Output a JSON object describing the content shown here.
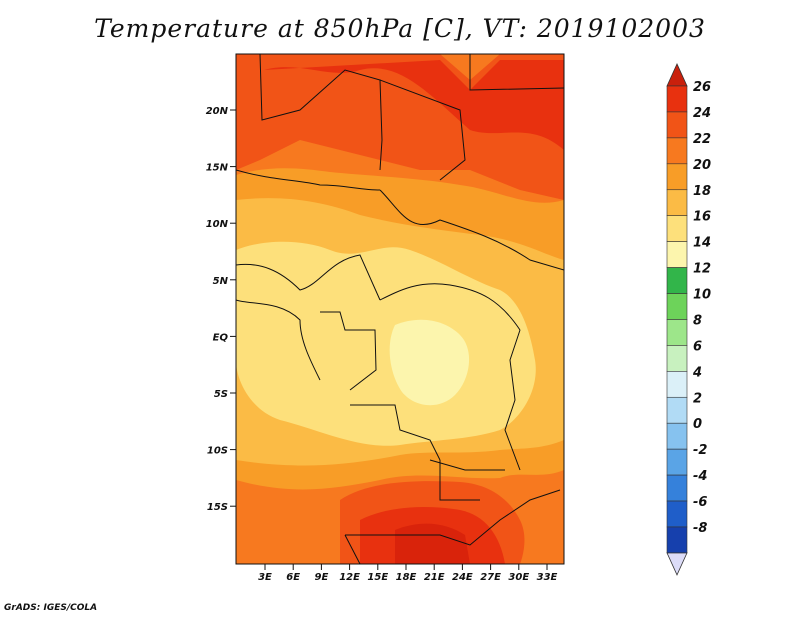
{
  "title": "Temperature at 850hPa [C], VT: 2019102003",
  "footer": "GrADS: IGES/COLA",
  "map": {
    "region": "Central Africa",
    "lat_range": [
      -19,
      25
    ],
    "lon_range": [
      0,
      35
    ],
    "lat_ticks": [
      "20N",
      "15N",
      "10N",
      "5N",
      "EQ",
      "5S",
      "10S",
      "15S"
    ],
    "lon_ticks": [
      "3E",
      "6E",
      "9E",
      "12E",
      "15E",
      "18E",
      "21E",
      "24E",
      "27E",
      "30E",
      "33E"
    ]
  },
  "colorbar": {
    "labels": [
      "26",
      "24",
      "22",
      "20",
      "18",
      "16",
      "14",
      "12",
      "10",
      "8",
      "6",
      "4",
      "2",
      "0",
      "-2",
      "-4",
      "-6",
      "-8"
    ],
    "colors": [
      "#e8310f",
      "#f15417",
      "#f7791f",
      "#f89d27",
      "#fbbb45",
      "#fde07b",
      "#fcf5ad",
      "#32b54a",
      "#6dd35a",
      "#9de68a",
      "#c8f1bf",
      "#dbf0f8",
      "#b1dbf5",
      "#86c2ef",
      "#5aa4e6",
      "#3581db",
      "#1f5ec9",
      "#1640ad",
      "#0d2284"
    ],
    "top_cap_color": "#c9200c",
    "bottom_cap_color": "#dcdcf8"
  }
}
